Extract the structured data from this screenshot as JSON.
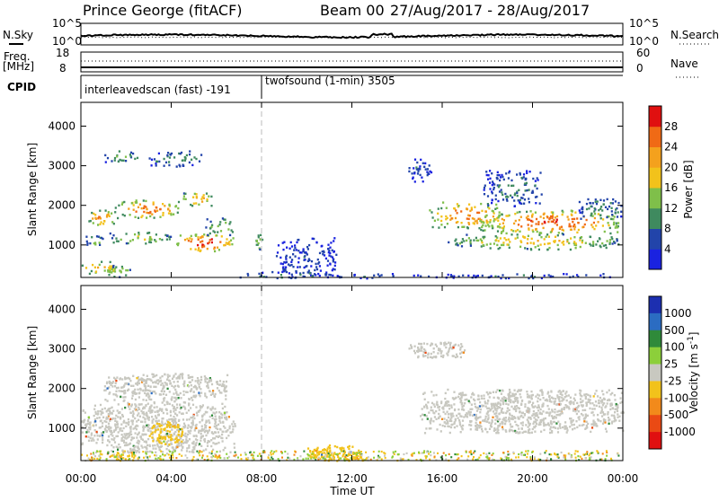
{
  "header": {
    "station": "Prince George (fitACF)",
    "beam": "Beam 00",
    "date_range": "27/Aug/2017 - 28/Aug/2017"
  },
  "top_panels": {
    "nsky_label": "N.Sky",
    "nsky_ticks": [
      "10^5",
      "10^0"
    ],
    "nsearch_label": "N.Search",
    "nsearch_ticks": [
      "10^5",
      "10^0"
    ],
    "freq_label_1": "Freq.",
    "freq_label_2": "[MHz]",
    "freq_ticks": [
      "18",
      "8"
    ],
    "nave_label": "Nave",
    "nave_ticks": [
      "60",
      "0"
    ],
    "cpid_label": "CPID",
    "cpid_segments": [
      {
        "name": "interleavedscan (fast) -191",
        "start_hour": 0,
        "end_hour": 8
      },
      {
        "name": "twofsound (1-min) 3505",
        "start_hour": 8,
        "end_hour": 24
      }
    ]
  },
  "axes": {
    "ylabel": "Slant Range [km]",
    "xlabel": "Time UT",
    "x_tick_labels": [
      "00:00",
      "04:00",
      "08:00",
      "12:00",
      "16:00",
      "20:00",
      "00:00"
    ],
    "y_tick_labels": [
      "1000",
      "2000",
      "3000",
      "4000"
    ]
  },
  "power_colorbar": {
    "label": "Power [dB]",
    "ticks": [
      "4",
      "8",
      "12",
      "16",
      "20",
      "24",
      "28"
    ],
    "colors": [
      "#1a22e0",
      "#2244aa",
      "#3f8a5f",
      "#7fbf4a",
      "#f2c21b",
      "#f4a11d",
      "#f06a15",
      "#e01010"
    ]
  },
  "velocity_colorbar": {
    "label": "Velocity [m s^-1]",
    "ticks": [
      "1000",
      "500",
      "100",
      "25",
      "-25",
      "-100",
      "-500",
      "-1000"
    ],
    "colors": [
      "#1c2fb0",
      "#2b6cc2",
      "#2f8a3a",
      "#8ccf3a",
      "#c8c8c0",
      "#f2c21b",
      "#f28a1b",
      "#ea4a14",
      "#e01010"
    ]
  },
  "chart_data": {
    "type": "heatmap",
    "x": {
      "unit": "hour UT",
      "range": [
        0,
        24
      ]
    },
    "y": {
      "unit": "km",
      "range": [
        180,
        4600
      ]
    },
    "panels": [
      "Power",
      "Velocity"
    ],
    "scatter_regions": [
      {
        "x": [
          0.2,
          1.6
        ],
        "y": [
          1500,
          1900
        ],
        "power_dB": 22
      },
      {
        "x": [
          1.4,
          4.5
        ],
        "y": [
          1700,
          2150
        ],
        "power_dB": 24
      },
      {
        "x": [
          4.4,
          5.8
        ],
        "y": [
          2000,
          2400
        ],
        "power_dB": 20
      },
      {
        "x": [
          1.0,
          2.5
        ],
        "y": [
          3100,
          3400
        ],
        "power_dB": 12
      },
      {
        "x": [
          3.0,
          5.5
        ],
        "y": [
          3000,
          3400
        ],
        "power_dB": 10
      },
      {
        "x": [
          0.2,
          1.0
        ],
        "y": [
          1000,
          1250
        ],
        "power_dB": 14
      },
      {
        "x": [
          1.2,
          4.0
        ],
        "y": [
          1050,
          1350
        ],
        "power_dB": 16
      },
      {
        "x": [
          4.2,
          6.8
        ],
        "y": [
          850,
          1300
        ],
        "power_dB": 28
      },
      {
        "x": [
          5.5,
          6.8
        ],
        "y": [
          1250,
          1700
        ],
        "power_dB": 14
      },
      {
        "x": [
          7.7,
          8.0
        ],
        "y": [
          900,
          1300
        ],
        "power_dB": 16
      },
      {
        "x": [
          0.0,
          1.8
        ],
        "y": [
          300,
          600
        ],
        "power_dB": 20
      },
      {
        "x": [
          1.0,
          2.2
        ],
        "y": [
          200,
          500
        ],
        "power_dB": 16
      },
      {
        "x": [
          8.6,
          11.3
        ],
        "y": [
          200,
          1200
        ],
        "power_dB": 6
      },
      {
        "x": [
          15.4,
          18.7
        ],
        "y": [
          1450,
          2100
        ],
        "power_dB": 24
      },
      {
        "x": [
          17.6,
          24.0
        ],
        "y": [
          1300,
          1900
        ],
        "power_dB": 26
      },
      {
        "x": [
          16.2,
          24.0
        ],
        "y": [
          900,
          1300
        ],
        "power_dB": 18
      },
      {
        "x": [
          17.8,
          20.5
        ],
        "y": [
          2000,
          2900
        ],
        "power_dB": 8
      },
      {
        "x": [
          22.0,
          24.0
        ],
        "y": [
          1600,
          2200
        ],
        "power_dB": 10
      },
      {
        "x": [
          14.4,
          15.5
        ],
        "y": [
          2600,
          3200
        ],
        "power_dB": 6
      },
      {
        "x": [
          7.0,
          11.0
        ],
        "y": [
          180,
          350
        ],
        "power_dB": 10
      },
      {
        "x": [
          11.0,
          14.0
        ],
        "y": [
          180,
          300
        ],
        "power_dB": 6
      },
      {
        "x": [
          14.5,
          24.0
        ],
        "y": [
          180,
          300
        ],
        "power_dB": 6
      }
    ],
    "velocity_regions": [
      {
        "x": [
          1.0,
          6.5
        ],
        "y": [
          1700,
          2400
        ],
        "velocity_ms": 0
      },
      {
        "x": [
          0.0,
          6.8
        ],
        "y": [
          400,
          1700
        ],
        "velocity_ms": 0
      },
      {
        "x": [
          3.0,
          4.5
        ],
        "y": [
          600,
          1200
        ],
        "velocity_ms": -80
      },
      {
        "x": [
          1.4,
          2.4
        ],
        "y": [
          200,
          450
        ],
        "velocity_ms": -80
      },
      {
        "x": [
          10.0,
          12.5
        ],
        "y": [
          180,
          600
        ],
        "velocity_ms": -80
      },
      {
        "x": [
          15.0,
          24.0
        ],
        "y": [
          900,
          2000
        ],
        "velocity_ms": 0
      },
      {
        "x": [
          14.5,
          17.0
        ],
        "y": [
          2800,
          3200
        ],
        "velocity_ms": 0
      }
    ]
  }
}
